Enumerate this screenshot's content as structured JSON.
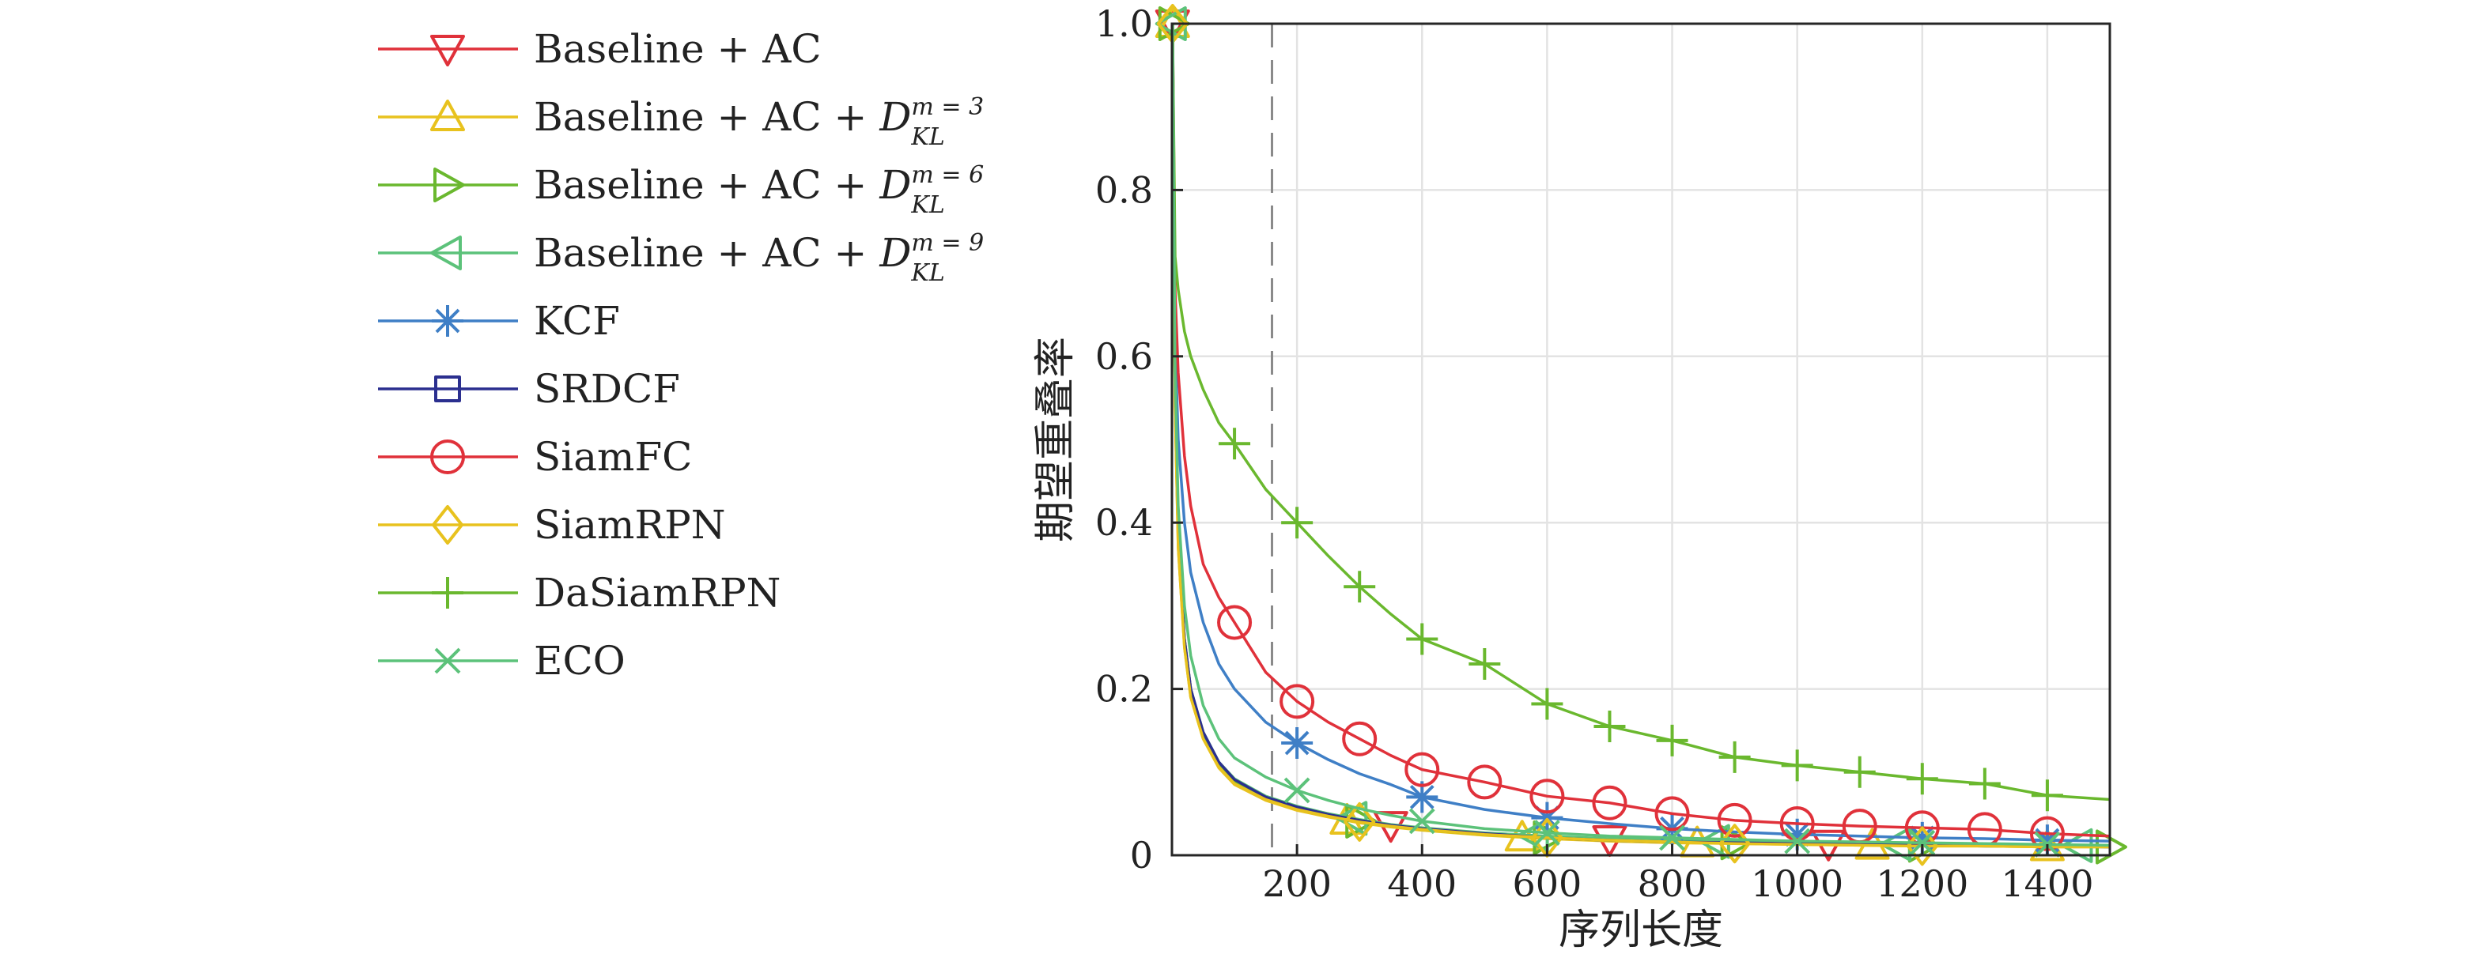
{
  "chart_data": {
    "type": "line",
    "title": "",
    "xlabel": "序列长度",
    "ylabel": "期望重叠率",
    "xlim": [
      0,
      1500
    ],
    "ylim": [
      0,
      1.0
    ],
    "xticks": [
      200,
      400,
      600,
      800,
      1000,
      1200,
      1400
    ],
    "xtick_labels": [
      "200",
      "400",
      "600",
      "800",
      "1000",
      "1200",
      "1400"
    ],
    "yticks": [
      0,
      0.2,
      0.4,
      0.6,
      0.8,
      1.0
    ],
    "ytick_labels": [
      "0",
      "0.2",
      "0.4",
      "0.6",
      "0.8",
      "1.0"
    ],
    "grid": true,
    "legend_position": "outside-left",
    "reference_line_x": 160,
    "series": [
      {
        "name": "Baseline + AC",
        "name_main": "Baseline + AC",
        "kl_m": "",
        "color": "#e0313a",
        "marker": "triangle-down",
        "x": [
          1,
          5,
          10,
          20,
          30,
          50,
          75,
          100,
          150,
          200,
          250,
          300,
          350,
          400,
          500,
          600,
          700,
          800,
          900,
          1000,
          1100,
          1200,
          1300,
          1400,
          1500
        ],
        "values": [
          1.0,
          0.55,
          0.38,
          0.26,
          0.2,
          0.145,
          0.11,
          0.09,
          0.07,
          0.058,
          0.05,
          0.042,
          0.036,
          0.032,
          0.026,
          0.022,
          0.019,
          0.017,
          0.015,
          0.014,
          0.013,
          0.012,
          0.012,
          0.011,
          0.011
        ],
        "marker_x": [
          1,
          350,
          700,
          1050
        ]
      },
      {
        "name": "Baseline + AC + D_KL^{m=3}",
        "name_main": "Baseline + AC + ",
        "kl_m": "m = 3",
        "color": "#e8c21e",
        "marker": "triangle-up",
        "x": [
          1,
          5,
          10,
          20,
          30,
          50,
          75,
          100,
          150,
          200,
          250,
          300,
          350,
          400,
          500,
          600,
          700,
          800,
          900,
          1000,
          1100,
          1200,
          1300,
          1400,
          1500
        ],
        "values": [
          1.0,
          0.54,
          0.37,
          0.25,
          0.19,
          0.14,
          0.105,
          0.085,
          0.066,
          0.054,
          0.046,
          0.039,
          0.034,
          0.03,
          0.024,
          0.02,
          0.017,
          0.015,
          0.014,
          0.013,
          0.012,
          0.011,
          0.011,
          0.01,
          0.01
        ],
        "marker_x": [
          1,
          280,
          560,
          840,
          1120,
          1400
        ]
      },
      {
        "name": "Baseline + AC + D_KL^{m=6}",
        "name_main": "Baseline + AC + ",
        "kl_m": "m = 6",
        "color": "#6ab82e",
        "marker": "triangle-right",
        "x": [
          1,
          5,
          10,
          20,
          30,
          50,
          75,
          100,
          150,
          200,
          250,
          300,
          350,
          400,
          500,
          600,
          700,
          800,
          900,
          1000,
          1100,
          1200,
          1300,
          1400,
          1500
        ],
        "values": [
          1.0,
          0.55,
          0.38,
          0.255,
          0.195,
          0.143,
          0.108,
          0.088,
          0.068,
          0.056,
          0.048,
          0.041,
          0.035,
          0.031,
          0.025,
          0.021,
          0.018,
          0.016,
          0.015,
          0.014,
          0.013,
          0.012,
          0.011,
          0.011,
          0.01
        ],
        "marker_x": [
          1,
          300,
          600,
          900,
          1200,
          1500
        ]
      },
      {
        "name": "Baseline + AC + D_KL^{m=9}",
        "name_main": "Baseline + AC + ",
        "kl_m": "m = 9",
        "color": "#5cc27a",
        "marker": "triangle-left",
        "x": [
          1,
          5,
          10,
          20,
          30,
          50,
          75,
          100,
          150,
          200,
          250,
          300,
          350,
          400,
          500,
          600,
          700,
          800,
          900,
          1000,
          1100,
          1200,
          1300,
          1400,
          1500
        ],
        "values": [
          1.0,
          0.56,
          0.39,
          0.26,
          0.2,
          0.148,
          0.112,
          0.092,
          0.071,
          0.059,
          0.05,
          0.043,
          0.037,
          0.033,
          0.027,
          0.023,
          0.02,
          0.018,
          0.016,
          0.015,
          0.014,
          0.013,
          0.012,
          0.012,
          0.011
        ],
        "marker_x": [
          1,
          290,
          580,
          870,
          1160,
          1450
        ]
      },
      {
        "name": "KCF",
        "name_main": "KCF",
        "kl_m": "",
        "color": "#3f7fc6",
        "marker": "asterisk",
        "x": [
          1,
          5,
          10,
          20,
          30,
          50,
          75,
          100,
          150,
          200,
          250,
          300,
          350,
          400,
          500,
          600,
          700,
          800,
          900,
          1000,
          1100,
          1200,
          1300,
          1400,
          1500
        ],
        "values": [
          1.0,
          0.62,
          0.5,
          0.4,
          0.34,
          0.28,
          0.23,
          0.2,
          0.16,
          0.135,
          0.115,
          0.098,
          0.085,
          0.07,
          0.055,
          0.045,
          0.038,
          0.032,
          0.028,
          0.025,
          0.023,
          0.021,
          0.02,
          0.018,
          0.017
        ],
        "marker_x": [
          200,
          400,
          600,
          800,
          1000,
          1200,
          1400
        ]
      },
      {
        "name": "SRDCF",
        "name_main": "SRDCF",
        "kl_m": "",
        "color": "#2b2f8f",
        "marker": "square",
        "x": [
          1,
          5,
          10,
          20,
          30,
          50,
          75,
          100,
          150,
          200,
          250,
          300,
          350,
          400,
          500,
          600,
          700,
          800,
          900,
          1000,
          1100,
          1200,
          1300,
          1400,
          1500
        ],
        "values": [
          1.0,
          0.56,
          0.39,
          0.26,
          0.2,
          0.148,
          0.112,
          0.091,
          0.07,
          0.058,
          0.049,
          0.042,
          0.036,
          0.032,
          0.026,
          0.021,
          0.018,
          0.016,
          0.015,
          0.014,
          0.013,
          0.012,
          0.011,
          0.011,
          0.01
        ],
        "marker_x": []
      },
      {
        "name": "SiamFC",
        "name_main": "SiamFC",
        "kl_m": "",
        "color": "#e0313a",
        "marker": "circle",
        "x": [
          1,
          5,
          10,
          20,
          30,
          50,
          75,
          100,
          150,
          200,
          250,
          300,
          350,
          400,
          500,
          600,
          700,
          800,
          900,
          1000,
          1100,
          1200,
          1300,
          1400,
          1500
        ],
        "values": [
          1.0,
          0.68,
          0.58,
          0.48,
          0.42,
          0.35,
          0.31,
          0.28,
          0.22,
          0.185,
          0.16,
          0.14,
          0.12,
          0.103,
          0.088,
          0.071,
          0.063,
          0.05,
          0.042,
          0.038,
          0.035,
          0.033,
          0.031,
          0.026,
          0.023
        ],
        "marker_x": [
          100,
          200,
          300,
          400,
          500,
          600,
          700,
          800,
          900,
          1000,
          1100,
          1200,
          1300,
          1400
        ]
      },
      {
        "name": "SiamRPN",
        "name_main": "SiamRPN",
        "kl_m": "",
        "color": "#e8c21e",
        "marker": "diamond",
        "x": [
          1,
          5,
          10,
          20,
          30,
          50,
          75,
          100,
          150,
          200,
          250,
          300,
          350,
          400,
          500,
          600,
          700,
          800,
          900,
          1000,
          1100,
          1200,
          1300,
          1400,
          1500
        ],
        "values": [
          1.0,
          0.54,
          0.37,
          0.25,
          0.19,
          0.14,
          0.106,
          0.086,
          0.067,
          0.055,
          0.047,
          0.04,
          0.035,
          0.031,
          0.025,
          0.021,
          0.018,
          0.016,
          0.014,
          0.013,
          0.012,
          0.011,
          0.011,
          0.01,
          0.01
        ],
        "marker_x": [
          1,
          300,
          600,
          900,
          1200
        ]
      },
      {
        "name": "DaSiamRPN",
        "name_main": "DaSiamRPN",
        "kl_m": "",
        "color": "#6ab82e",
        "marker": "plus",
        "x": [
          1,
          5,
          10,
          20,
          30,
          50,
          75,
          100,
          150,
          200,
          250,
          300,
          350,
          400,
          500,
          600,
          700,
          800,
          900,
          1000,
          1100,
          1200,
          1300,
          1400,
          1500
        ],
        "values": [
          1.0,
          0.72,
          0.68,
          0.63,
          0.6,
          0.56,
          0.52,
          0.495,
          0.44,
          0.4,
          0.36,
          0.323,
          0.29,
          0.26,
          0.23,
          0.182,
          0.155,
          0.138,
          0.118,
          0.108,
          0.1,
          0.092,
          0.086,
          0.072,
          0.067
        ],
        "marker_x": [
          100,
          200,
          300,
          400,
          500,
          600,
          700,
          800,
          900,
          1000,
          1100,
          1200,
          1300,
          1400
        ]
      },
      {
        "name": "ECO",
        "name_main": "ECO",
        "kl_m": "",
        "color": "#5cc27a",
        "marker": "x",
        "x": [
          1,
          5,
          10,
          20,
          30,
          50,
          75,
          100,
          150,
          200,
          250,
          300,
          350,
          400,
          500,
          600,
          700,
          800,
          900,
          1000,
          1100,
          1200,
          1300,
          1400,
          1500
        ],
        "values": [
          1.0,
          0.58,
          0.42,
          0.3,
          0.24,
          0.18,
          0.14,
          0.117,
          0.094,
          0.078,
          0.066,
          0.056,
          0.048,
          0.041,
          0.032,
          0.027,
          0.023,
          0.021,
          0.019,
          0.017,
          0.016,
          0.015,
          0.014,
          0.013,
          0.012
        ],
        "marker_x": [
          200,
          400,
          600,
          800,
          1000,
          1200,
          1400
        ]
      }
    ]
  }
}
